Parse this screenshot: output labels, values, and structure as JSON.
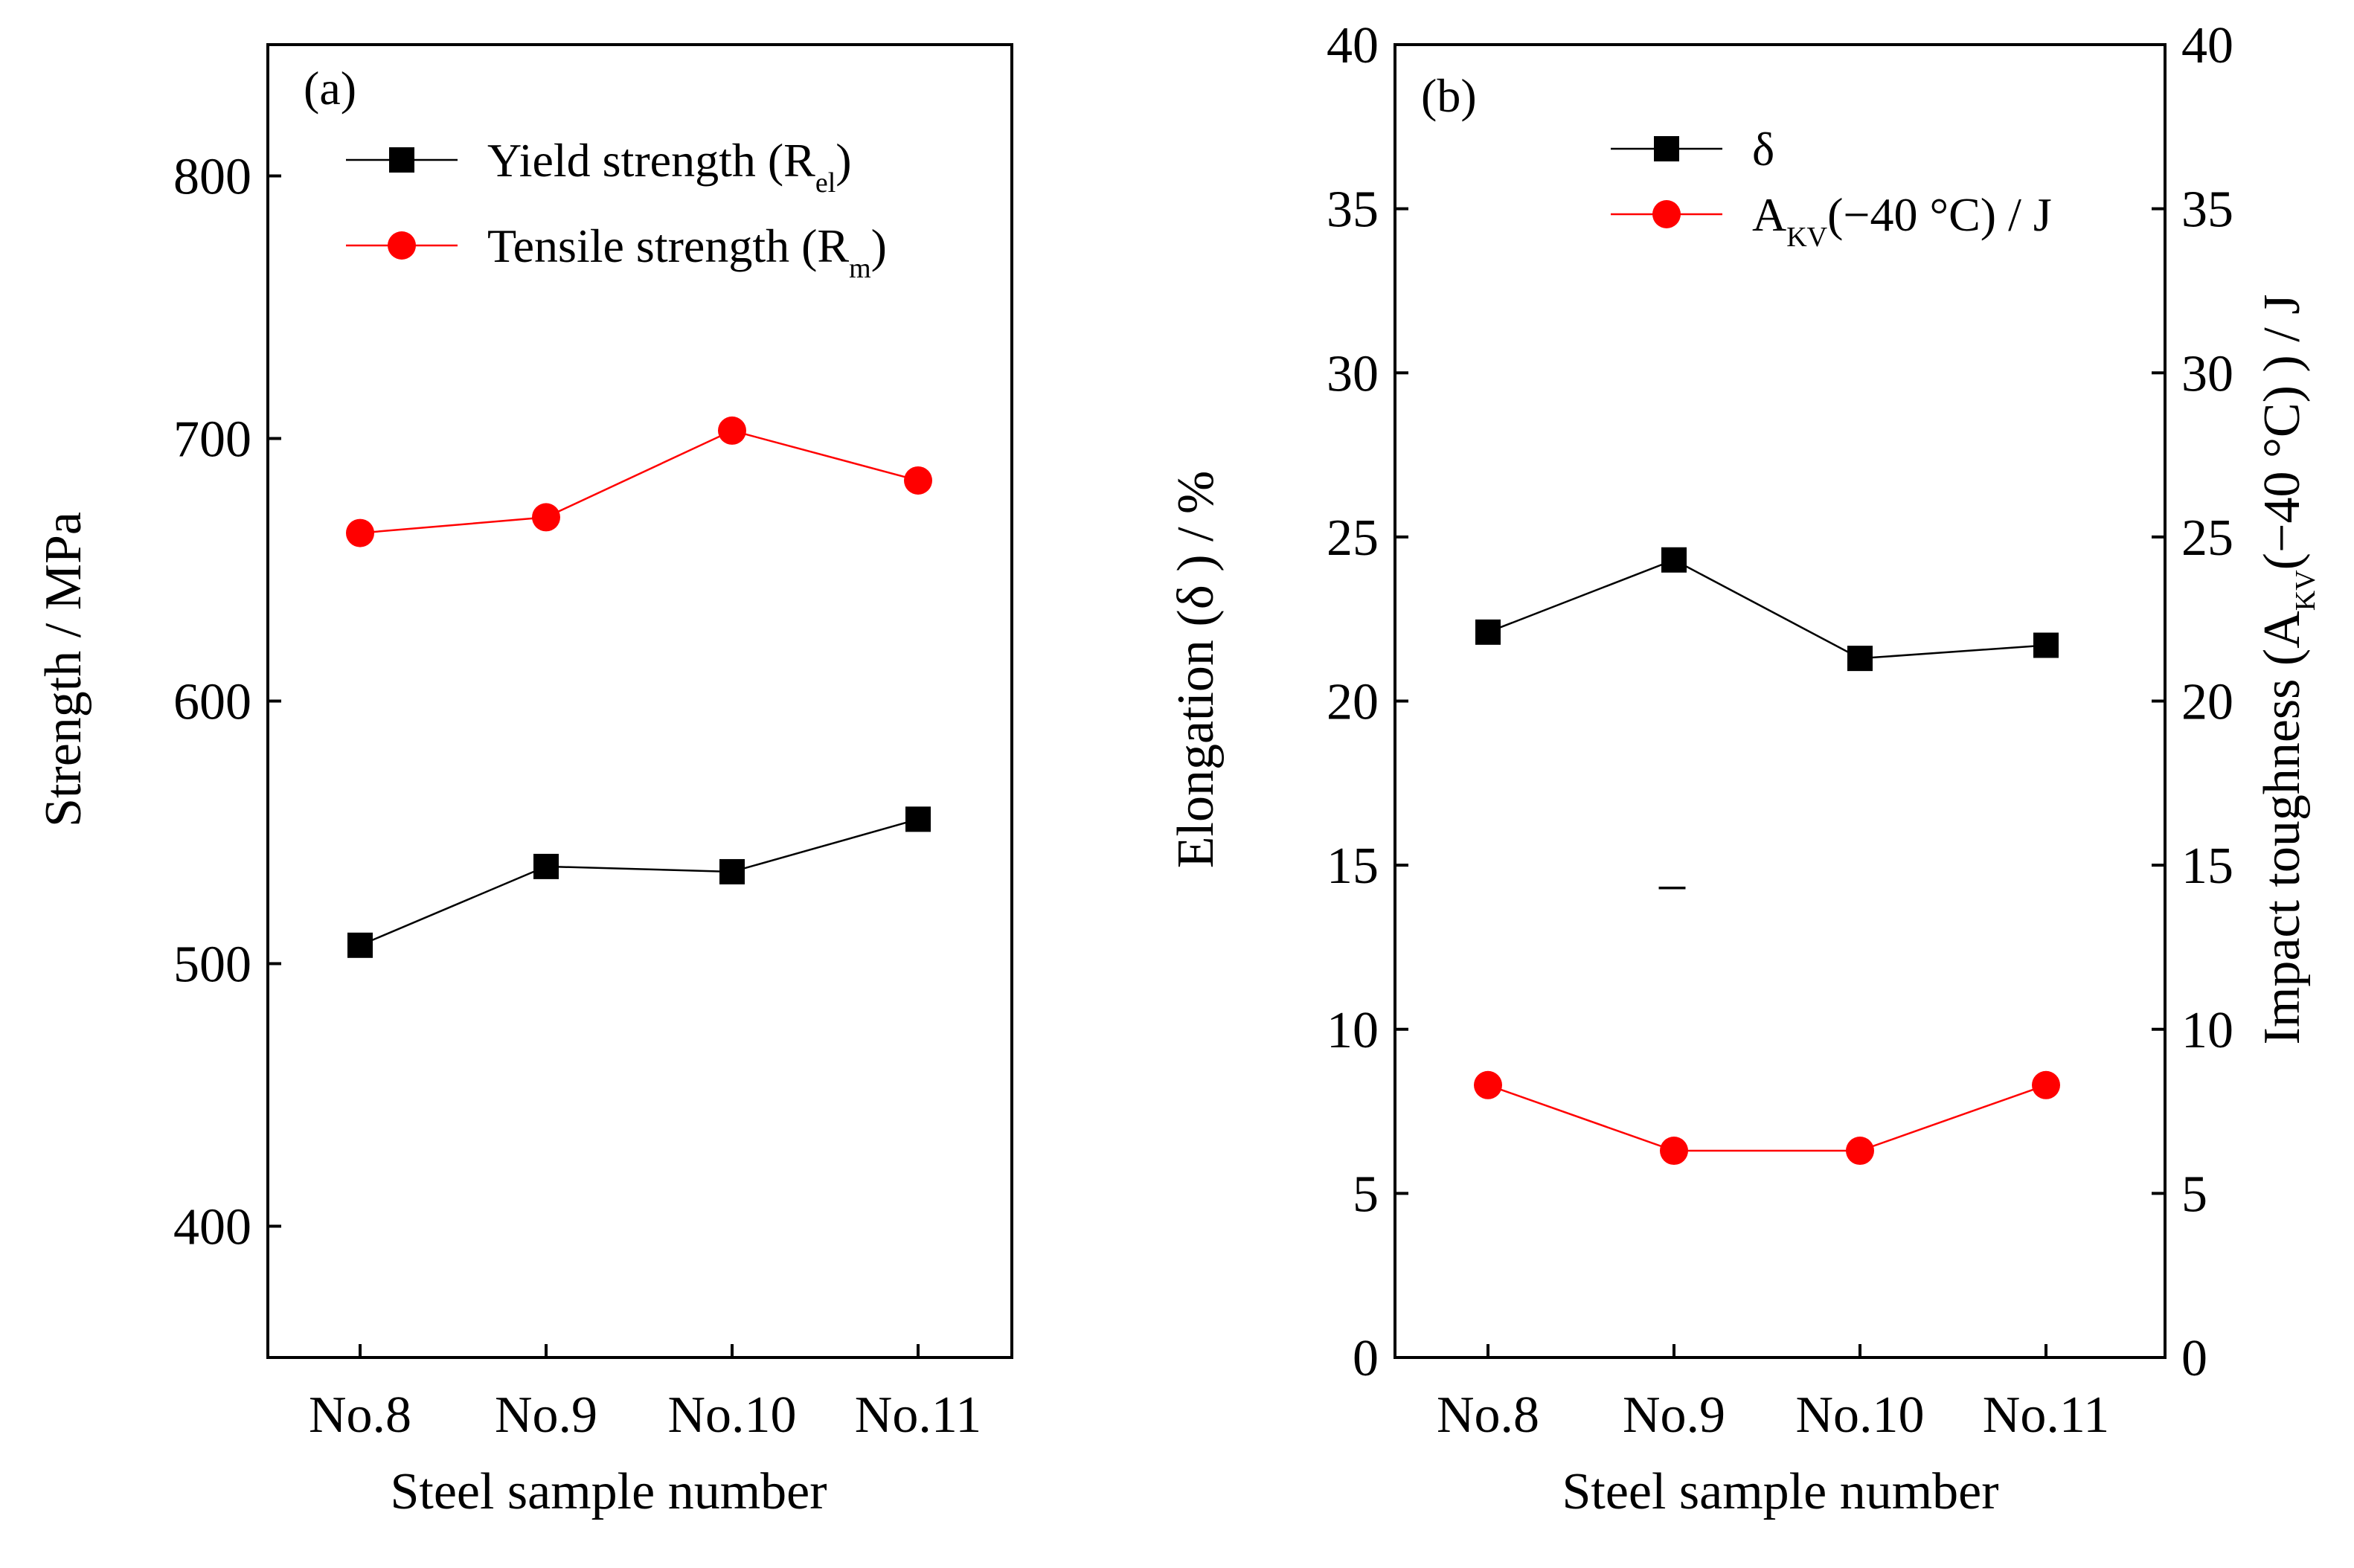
{
  "chart_data": [
    {
      "type": "line",
      "panel_label": "(a)",
      "categories": [
        "No.8",
        "No.9",
        "No.10",
        "No.11"
      ],
      "xlabel": "Steel sample number",
      "ylabel": "Strength / MPa",
      "ylim": [
        350,
        850
      ],
      "yticks": [
        "400",
        "500",
        "600",
        "700",
        "800"
      ],
      "ytick_values": [
        400,
        500,
        600,
        700,
        800
      ],
      "legend_position": "top-left",
      "series": [
        {
          "legend_main": "Yield strength (R",
          "legend_sub": "el",
          "legend_tail": ")",
          "marker": "square",
          "color": "#000000",
          "values": [
            507,
            537,
            535,
            555
          ]
        },
        {
          "legend_main": "Tensile strength (R",
          "legend_sub": "m",
          "legend_tail": ")",
          "marker": "circle",
          "color": "#ff0000",
          "values": [
            664,
            670,
            703,
            684
          ]
        }
      ]
    },
    {
      "type": "line",
      "panel_label": "(b)",
      "categories": [
        "No.8",
        "No.9",
        "No.10",
        "No.11"
      ],
      "xlabel": "Steel sample number",
      "ylabel": "Elongation (δ )  / %",
      "ylabel_right_main": "Impact toughness (A",
      "ylabel_right_sub": "KV",
      "ylabel_right_tail": "(−40 °C) ) / J",
      "ylim": [
        0,
        40
      ],
      "yticks": [
        "0",
        "5",
        "10",
        "15",
        "20",
        "25",
        "30",
        "35",
        "40"
      ],
      "ytick_values": [
        0,
        5,
        10,
        15,
        20,
        25,
        30,
        35,
        40
      ],
      "yticks_right": [
        "0",
        "5",
        "10",
        "15",
        "20",
        "25",
        "30",
        "35",
        "40"
      ],
      "stray_mark": "–",
      "legend_position": "top-center",
      "series": [
        {
          "legend_main": "δ",
          "legend_sub": "",
          "legend_tail": "",
          "marker": "square",
          "color": "#000000",
          "values": [
            22.1,
            24.3,
            21.3,
            21.7
          ]
        },
        {
          "legend_main": "A",
          "legend_sub": "KV",
          "legend_tail": "(−40 °C) / J",
          "marker": "circle",
          "color": "#ff0000",
          "values": [
            8.3,
            6.3,
            6.3,
            8.3
          ]
        }
      ]
    }
  ]
}
